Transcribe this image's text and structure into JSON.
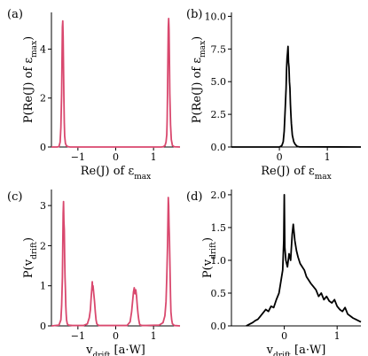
{
  "chart_data": [
    {
      "panel": "(a)",
      "type": "line",
      "color": "#d9486e",
      "xlabel": "Re(J) of ε_max",
      "ylabel": "P(Re(J) of ε_max)",
      "xlim": [
        -1.7,
        1.7
      ],
      "ylim": [
        0,
        5.5
      ],
      "xticks": [
        {
          "v": -1,
          "t": "−1"
        },
        {
          "v": 0,
          "t": "0"
        },
        {
          "v": 1,
          "t": "1"
        }
      ],
      "yticks": [
        {
          "v": 0,
          "t": "0"
        },
        {
          "v": 2,
          "t": "2"
        },
        {
          "v": 4,
          "t": "4"
        }
      ],
      "x": [
        -1.7,
        -1.55,
        -1.5,
        -1.47,
        -1.45,
        -1.43,
        -1.42,
        -1.41,
        -1.4,
        -1.39,
        -1.38,
        -1.37,
        -1.36,
        -1.35,
        -1.33,
        -1.3,
        -1.25,
        -1.2,
        1.2,
        1.25,
        1.3,
        1.33,
        1.35,
        1.36,
        1.37,
        1.38,
        1.39,
        1.4,
        1.41,
        1.42,
        1.43,
        1.45,
        1.47,
        1.5,
        1.55,
        1.7
      ],
      "y": [
        0,
        0,
        0.02,
        0.2,
        0.8,
        2.2,
        3.6,
        4.9,
        5.15,
        4.5,
        3.2,
        2.0,
        1.0,
        0.45,
        0.15,
        0.04,
        0.01,
        0,
        0,
        0.01,
        0.05,
        0.2,
        0.5,
        1.1,
        2.2,
        3.6,
        4.9,
        5.25,
        4.8,
        3.6,
        2.2,
        0.9,
        0.3,
        0.06,
        0.01,
        0
      ]
    },
    {
      "panel": "(b)",
      "type": "line",
      "color": "#000000",
      "xlabel": "Re(J) of ε_max",
      "ylabel": "P(Re(J) of ε_max)",
      "xlim": [
        -1.0,
        1.7
      ],
      "ylim": [
        0,
        10.3
      ],
      "xticks": [
        {
          "v": 0,
          "t": "0"
        },
        {
          "v": 1,
          "t": "1"
        }
      ],
      "yticks": [
        {
          "v": 0,
          "t": "0.0"
        },
        {
          "v": 2.5,
          "t": "2.5"
        },
        {
          "v": 5,
          "t": "5.0"
        },
        {
          "v": 7.5,
          "t": "7.5"
        },
        {
          "v": 10,
          "t": "10.0"
        }
      ],
      "x": [
        -1.0,
        0.0,
        0.05,
        0.08,
        0.1,
        0.12,
        0.14,
        0.15,
        0.16,
        0.17,
        0.18,
        0.19,
        0.2,
        0.21,
        0.22,
        0.23,
        0.24,
        0.25,
        0.27,
        0.3,
        0.33,
        0.37,
        0.42,
        1.7
      ],
      "y": [
        0,
        0,
        0.1,
        0.4,
        1.2,
        2.8,
        4.5,
        6.0,
        6.8,
        7.2,
        7.7,
        6.5,
        6.1,
        5.0,
        4.5,
        3.3,
        2.5,
        1.8,
        0.9,
        0.4,
        0.2,
        0.05,
        0.01,
        0
      ]
    },
    {
      "panel": "(c)",
      "type": "line",
      "color": "#d9486e",
      "xlabel": "v_drift [a·W]",
      "ylabel": "P(v_drift)",
      "xlim": [
        -1.7,
        1.7
      ],
      "ylim": [
        0,
        3.4
      ],
      "xticks": [
        {
          "v": -1,
          "t": "−1"
        },
        {
          "v": 0,
          "t": "0"
        },
        {
          "v": 1,
          "t": "1"
        }
      ],
      "yticks": [
        {
          "v": 0,
          "t": "0"
        },
        {
          "v": 1,
          "t": "1"
        },
        {
          "v": 2,
          "t": "2"
        },
        {
          "v": 3,
          "t": "3"
        }
      ],
      "x": [
        -1.7,
        -1.5,
        -1.45,
        -1.43,
        -1.41,
        -1.4,
        -1.39,
        -1.38,
        -1.37,
        -1.36,
        -1.35,
        -1.34,
        -1.33,
        -1.32,
        -1.31,
        -1.3,
        -1.28,
        -1.25,
        -1.15,
        -0.85,
        -0.75,
        -0.7,
        -0.67,
        -0.65,
        -0.63,
        -0.62,
        -0.61,
        -0.6,
        -0.58,
        -0.56,
        -0.54,
        -0.52,
        -0.5,
        -0.45,
        -0.35,
        0.3,
        0.38,
        0.42,
        0.45,
        0.47,
        0.49,
        0.51,
        0.53,
        0.55,
        0.57,
        0.59,
        0.61,
        0.63,
        0.65,
        0.7,
        0.8,
        1.15,
        1.25,
        1.3,
        1.33,
        1.35,
        1.37,
        1.38,
        1.39,
        1.4,
        1.41,
        1.42,
        1.43,
        1.44,
        1.45,
        1.46,
        1.48,
        1.5,
        1.55,
        1.7
      ],
      "y": [
        0,
        0.02,
        0.15,
        0.5,
        1.2,
        2.0,
        2.8,
        3.1,
        2.6,
        2.4,
        1.7,
        1.2,
        0.9,
        0.5,
        0.3,
        0.15,
        0.05,
        0.02,
        0.01,
        0.01,
        0.05,
        0.2,
        0.4,
        0.7,
        0.95,
        1.1,
        0.9,
        1.0,
        0.8,
        0.6,
        0.35,
        0.15,
        0.05,
        0.01,
        0.01,
        0.01,
        0.1,
        0.35,
        0.65,
        0.85,
        0.95,
        0.8,
        0.9,
        0.75,
        0.5,
        0.3,
        0.15,
        0.05,
        0.02,
        0.01,
        0.01,
        0.02,
        0.08,
        0.25,
        0.6,
        1.2,
        2.0,
        2.6,
        3.2,
        3.0,
        2.5,
        2.2,
        1.7,
        1.2,
        0.7,
        0.35,
        0.15,
        0.05,
        0.01,
        0
      ]
    },
    {
      "panel": "(d)",
      "type": "line",
      "color": "#000000",
      "xlabel": "v_drift [a·W]",
      "ylabel": "P(v_drift)",
      "xlim": [
        -1.0,
        1.45
      ],
      "ylim": [
        0,
        2.08
      ],
      "xticks": [
        {
          "v": 0,
          "t": "0"
        },
        {
          "v": 1,
          "t": "1"
        }
      ],
      "yticks": [
        {
          "v": 0,
          "t": "0.0"
        },
        {
          "v": 0.5,
          "t": "0.5"
        },
        {
          "v": 1,
          "t": "1.0"
        },
        {
          "v": 1.5,
          "t": "1.5"
        },
        {
          "v": 2,
          "t": "2.0"
        }
      ],
      "x": [
        -0.72,
        -0.65,
        -0.6,
        -0.55,
        -0.5,
        -0.45,
        -0.4,
        -0.35,
        -0.3,
        -0.25,
        -0.2,
        -0.15,
        -0.1,
        -0.06,
        -0.03,
        -0.01,
        0.0,
        0.01,
        0.03,
        0.06,
        0.09,
        0.12,
        0.15,
        0.17,
        0.2,
        0.23,
        0.26,
        0.3,
        0.34,
        0.38,
        0.42,
        0.46,
        0.5,
        0.55,
        0.6,
        0.65,
        0.7,
        0.75,
        0.8,
        0.85,
        0.9,
        0.95,
        1.0,
        1.05,
        1.1,
        1.15,
        1.2,
        1.25,
        1.3,
        1.35,
        1.4,
        1.45
      ],
      "y": [
        0.0,
        0.03,
        0.05,
        0.08,
        0.1,
        0.15,
        0.2,
        0.25,
        0.22,
        0.3,
        0.28,
        0.4,
        0.5,
        0.7,
        0.85,
        1.3,
        2.0,
        1.2,
        1.0,
        0.9,
        1.1,
        1.0,
        1.4,
        1.55,
        1.3,
        1.15,
        1.05,
        0.95,
        0.9,
        0.85,
        0.75,
        0.7,
        0.65,
        0.6,
        0.55,
        0.45,
        0.5,
        0.4,
        0.45,
        0.38,
        0.35,
        0.4,
        0.3,
        0.25,
        0.22,
        0.28,
        0.18,
        0.15,
        0.12,
        0.1,
        0.08,
        0.06
      ]
    }
  ]
}
